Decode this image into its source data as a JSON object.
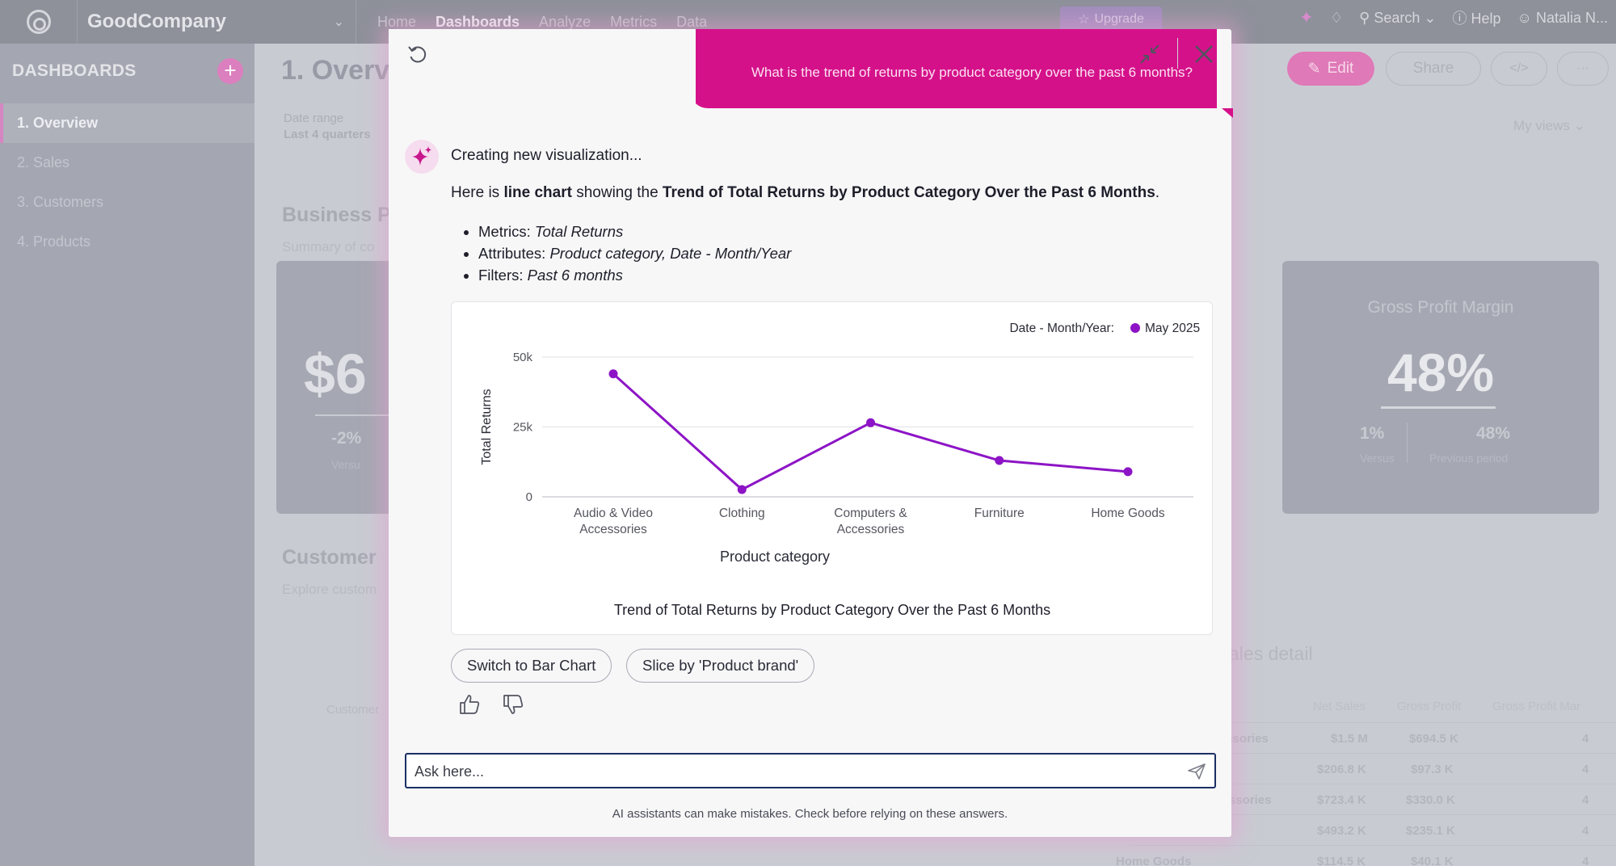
{
  "app": {
    "workspace_name": "GoodCompany",
    "nav": [
      "Home",
      "Dashboards",
      "Analyze",
      "Metrics",
      "Data"
    ],
    "active_nav": "Dashboards",
    "upgrade_label": "Upgrade",
    "search_label": "Search",
    "help_label": "Help",
    "user_name": "Natalia N..."
  },
  "sidebar": {
    "title": "DASHBOARDS",
    "items": [
      {
        "label": "1. Overview",
        "active": true
      },
      {
        "label": "2. Sales"
      },
      {
        "label": "3. Customers"
      },
      {
        "label": "4. Products"
      }
    ]
  },
  "dashboard": {
    "title": "1. Overv",
    "edit_label": "Edit",
    "share_label": "Share",
    "date_range_label": "Date range",
    "date_range_value": "Last 4 quarters",
    "my_views": "My views",
    "section1_title": "Business P",
    "section1_sub": "Summary of co",
    "section2_title": "Customer",
    "section2_sub": "Explore custom",
    "kpi_left": {
      "value": "$6",
      "change": "-2%",
      "versus": "Versu"
    },
    "kpi_right": {
      "title": "Gross Profit Margin",
      "value": "48%",
      "change": "1%",
      "versus_label": "Versus",
      "prev": "48%",
      "prev_label": "Previous period"
    },
    "customer_label": "Customer",
    "sales_detail": "ales detail",
    "table": {
      "headers": [
        "Net Sales",
        "Gross Profit",
        "Gross Profit Mar"
      ],
      "rows": [
        {
          "label": "essories",
          "net": "$1.5 M",
          "gross": "$694.5 K",
          "margin": "4"
        },
        {
          "label": "",
          "net": "$206.8 K",
          "gross": "$97.3 K",
          "margin": "4"
        },
        {
          "label": "ssories",
          "net": "$723.4 K",
          "gross": "$330.0 K",
          "margin": "4"
        },
        {
          "label": "",
          "net": "$493.2 K",
          "gross": "$235.1 K",
          "margin": "4"
        },
        {
          "label": "Home Goods",
          "net": "$114.5 K",
          "gross": "$40.1 K",
          "margin": "4"
        }
      ]
    }
  },
  "assistant": {
    "user_question": "What is the trend of returns by product category over the past 6 months?",
    "status": "Creating new visualization...",
    "response_prefix": "Here is ",
    "response_type": "line chart",
    "response_mid": " showing the ",
    "response_title": "Trend of Total Returns by Product Category Over the Past 6 Months",
    "response_end": ".",
    "bullets": [
      {
        "label": "Metrics: ",
        "value": "Total Returns"
      },
      {
        "label": "Attributes: ",
        "value": "Product category, Date - Month/Year"
      },
      {
        "label": "Filters: ",
        "value": "Past 6 months"
      }
    ],
    "suggestions": [
      "Switch to Bar Chart",
      "Slice by 'Product brand'"
    ],
    "input_placeholder": "Ask here...",
    "disclaimer": "AI assistants can make mistakes. Check before relying on these answers."
  },
  "chart_data": {
    "type": "line",
    "title": "Trend of Total Returns by Product Category Over the Past 6 Months",
    "xlabel": "Product category",
    "ylabel": "Total Returns",
    "categories": [
      "Audio & Video Accessories",
      "Clothing",
      "Computers & Accessories",
      "Furniture",
      "Home Goods"
    ],
    "category_lines": [
      [
        "Audio & Video",
        "Accessories"
      ],
      [
        "Clothing"
      ],
      [
        "Computers &",
        "Accessories"
      ],
      [
        "Furniture"
      ],
      [
        "Home Goods"
      ]
    ],
    "legend_title": "Date - Month/Year:",
    "legend_position": "top-right",
    "series": [
      {
        "name": "May 2025",
        "values": [
          44000,
          2600,
          26500,
          13000,
          9000
        ],
        "color": "#8d14c6"
      }
    ],
    "ylim": [
      0,
      50000
    ],
    "yticks": [
      0,
      25000,
      50000
    ],
    "ytick_labels": [
      "0",
      "25k",
      "50k"
    ],
    "grid": true
  },
  "colors": {
    "accent": "#d5118a",
    "series": "#8d14c6",
    "input_border": "#1b2f63"
  }
}
